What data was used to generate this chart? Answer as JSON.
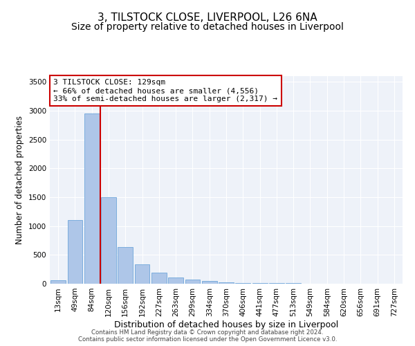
{
  "title": "3, TILSTOCK CLOSE, LIVERPOOL, L26 6NA",
  "subtitle": "Size of property relative to detached houses in Liverpool",
  "xlabel": "Distribution of detached houses by size in Liverpool",
  "ylabel": "Number of detached properties",
  "categories": [
    "13sqm",
    "49sqm",
    "84sqm",
    "120sqm",
    "156sqm",
    "192sqm",
    "227sqm",
    "263sqm",
    "299sqm",
    "334sqm",
    "370sqm",
    "406sqm",
    "441sqm",
    "477sqm",
    "513sqm",
    "549sqm",
    "584sqm",
    "620sqm",
    "656sqm",
    "691sqm",
    "727sqm"
  ],
  "values": [
    55,
    1100,
    2950,
    1500,
    640,
    340,
    195,
    110,
    75,
    45,
    25,
    18,
    15,
    10,
    8,
    5,
    5,
    5,
    5,
    3,
    2
  ],
  "bar_color": "#aec6e8",
  "bar_edge_color": "#5b9bd5",
  "vline_x": 3,
  "vline_color": "#cc0000",
  "annotation_text": "3 TILSTOCK CLOSE: 129sqm\n← 66% of detached houses are smaller (4,556)\n33% of semi-detached houses are larger (2,317) →",
  "annotation_box_color": "#ffffff",
  "annotation_box_edge": "#cc0000",
  "ylim": [
    0,
    3600
  ],
  "yticks": [
    0,
    500,
    1000,
    1500,
    2000,
    2500,
    3000,
    3500
  ],
  "background_color": "#eef2f9",
  "footer_line1": "Contains HM Land Registry data © Crown copyright and database right 2024.",
  "footer_line2": "Contains public sector information licensed under the Open Government Licence v3.0.",
  "title_fontsize": 11,
  "subtitle_fontsize": 10,
  "xlabel_fontsize": 9,
  "ylabel_fontsize": 8.5,
  "tick_fontsize": 7.5
}
